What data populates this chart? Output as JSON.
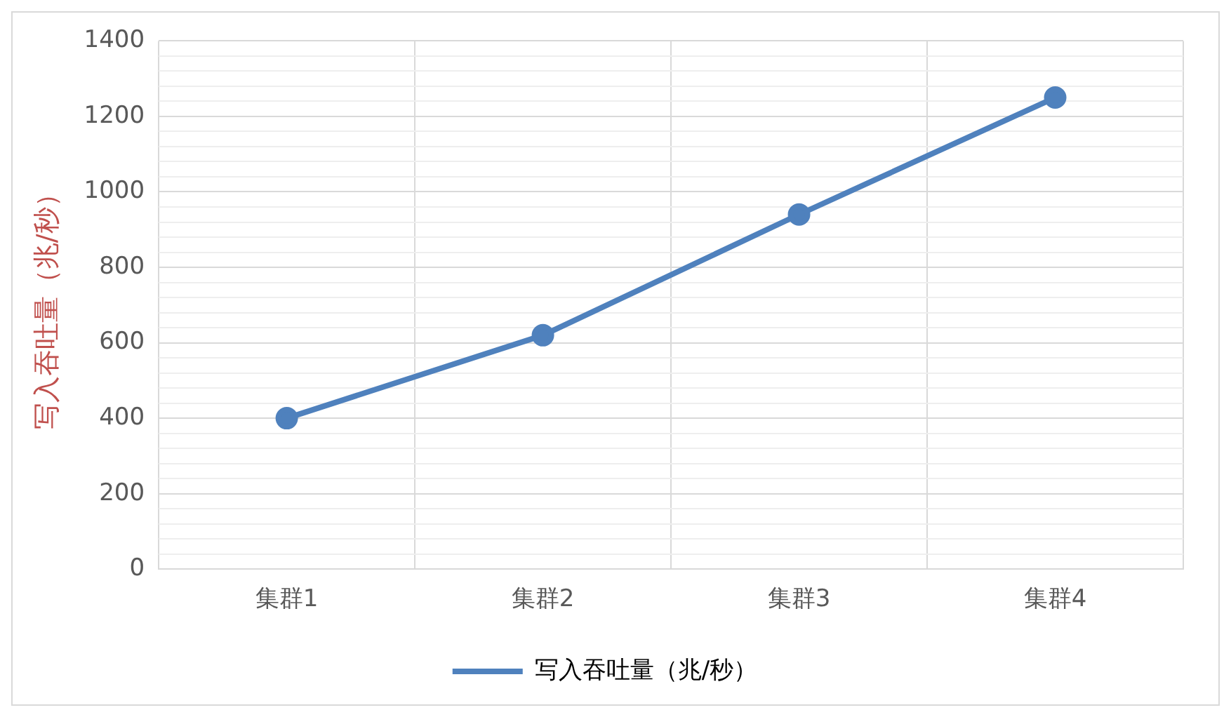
{
  "chart_data": {
    "type": "line",
    "ylabel": "写入吞吐量（兆/秒）",
    "categories": [
      "集群1",
      "集群2",
      "集群3",
      "集群4"
    ],
    "series": [
      {
        "name": "写入吞吐量（兆/秒）",
        "color": "#4f81bd",
        "values": [
          400,
          620,
          940,
          1250
        ]
      }
    ],
    "ylim": [
      0,
      1400
    ],
    "yticks": [
      0,
      {
        "value": 40,
        "label": null
      },
      {
        "value": 80,
        "label": null
      },
      {
        "value": 120,
        "label": null
      },
      {
        "value": 160,
        "label": null
      },
      200,
      {
        "value": 240,
        "label": null
      },
      {
        "value": 280,
        "label": null
      },
      {
        "value": 320,
        "label": null
      },
      {
        "value": 360,
        "label": null
      },
      400,
      {
        "value": 440,
        "label": null
      },
      {
        "value": 480,
        "label": null
      },
      {
        "value": 520,
        "label": null
      },
      {
        "value": 560,
        "label": null
      },
      600,
      {
        "value": 640,
        "label": null
      },
      {
        "value": 680,
        "label": null
      },
      {
        "value": 720,
        "label": null
      },
      {
        "value": 760,
        "label": null
      },
      800,
      {
        "value": 840,
        "label": null
      },
      {
        "value": 880,
        "label": null
      },
      {
        "value": 920,
        "label": null
      },
      {
        "value": 960,
        "label": null
      },
      1000,
      {
        "value": 1040,
        "label": null
      },
      {
        "value": 1080,
        "label": null
      },
      {
        "value": 1120,
        "label": null
      },
      {
        "value": 1160,
        "label": null
      },
      1200,
      {
        "value": 1240,
        "label": null
      },
      {
        "value": 1280,
        "label": null
      },
      {
        "value": 1320,
        "label": null
      },
      {
        "value": 1360,
        "label": null
      },
      1400
    ],
    "grid": true,
    "legend": "bottom",
    "marker": "circle",
    "line_style": "solid"
  }
}
